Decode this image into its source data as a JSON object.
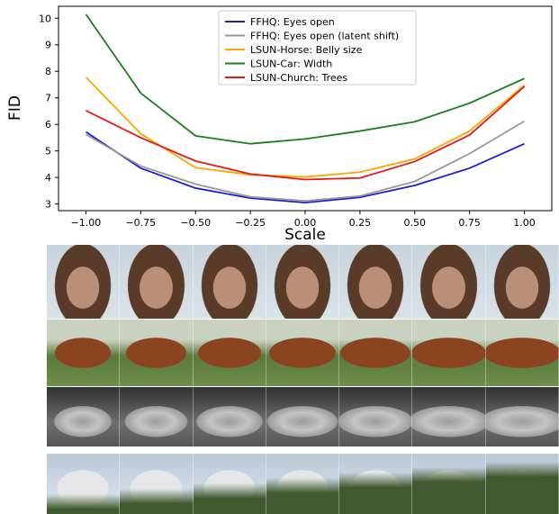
{
  "chart_data": {
    "type": "line",
    "xlabel": "Scale",
    "ylabel": "FID",
    "x": [
      -1.0,
      -0.75,
      -0.5,
      -0.25,
      0.0,
      0.25,
      0.5,
      0.75,
      1.0
    ],
    "xticks": [
      "−1.00",
      "−0.75",
      "−0.50",
      "−0.25",
      "0.00",
      "0.25",
      "0.50",
      "0.75",
      "1.00"
    ],
    "yticks": [
      "3",
      "4",
      "5",
      "6",
      "7",
      "8",
      "9",
      "10"
    ],
    "xlim": [
      -1.125,
      1.125
    ],
    "ylim": [
      2.75,
      10.45
    ],
    "grid": false,
    "legend_position": "top-center",
    "series": [
      {
        "name": "FFHQ: Eyes open",
        "color": "#1f1fd0",
        "values": [
          5.72,
          4.35,
          3.6,
          3.22,
          3.05,
          3.25,
          3.7,
          4.35,
          5.27
        ]
      },
      {
        "name": "FFHQ: Eyes open (latent shift)",
        "color": "#999999",
        "values": [
          5.62,
          4.43,
          3.75,
          3.27,
          3.12,
          3.3,
          3.85,
          4.9,
          6.12
        ]
      },
      {
        "name": "LSUN-Horse: Belly size",
        "color": "#ffa500",
        "values": [
          7.78,
          5.65,
          4.37,
          4.1,
          4.02,
          4.2,
          4.7,
          5.75,
          7.48
        ]
      },
      {
        "name": "LSUN-Car: Width",
        "color": "#1a7f1a",
        "values": [
          10.15,
          7.18,
          5.57,
          5.27,
          5.45,
          5.75,
          6.1,
          6.8,
          7.73
        ]
      },
      {
        "name": "LSUN-Church: Trees",
        "color": "#e31a1c",
        "values": [
          6.52,
          5.5,
          4.62,
          4.13,
          3.92,
          3.98,
          4.6,
          5.6,
          7.43
        ]
      }
    ]
  },
  "image_strip": {
    "rows": [
      {
        "subject": "face",
        "colors": [
          "#b98f78",
          "#5a3b2a",
          "#c8d4dc"
        ]
      },
      {
        "subject": "horse",
        "colors": [
          "#8a4520",
          "#5b7a3c",
          "#c9d2c0"
        ]
      },
      {
        "subject": "car",
        "colors": [
          "#9a9c9e",
          "#2f3234",
          "#6d7070"
        ]
      },
      {
        "subject": "church",
        "colors": [
          "#e6e6e8",
          "#3f5a2e",
          "#bcc8d8"
        ]
      }
    ]
  }
}
